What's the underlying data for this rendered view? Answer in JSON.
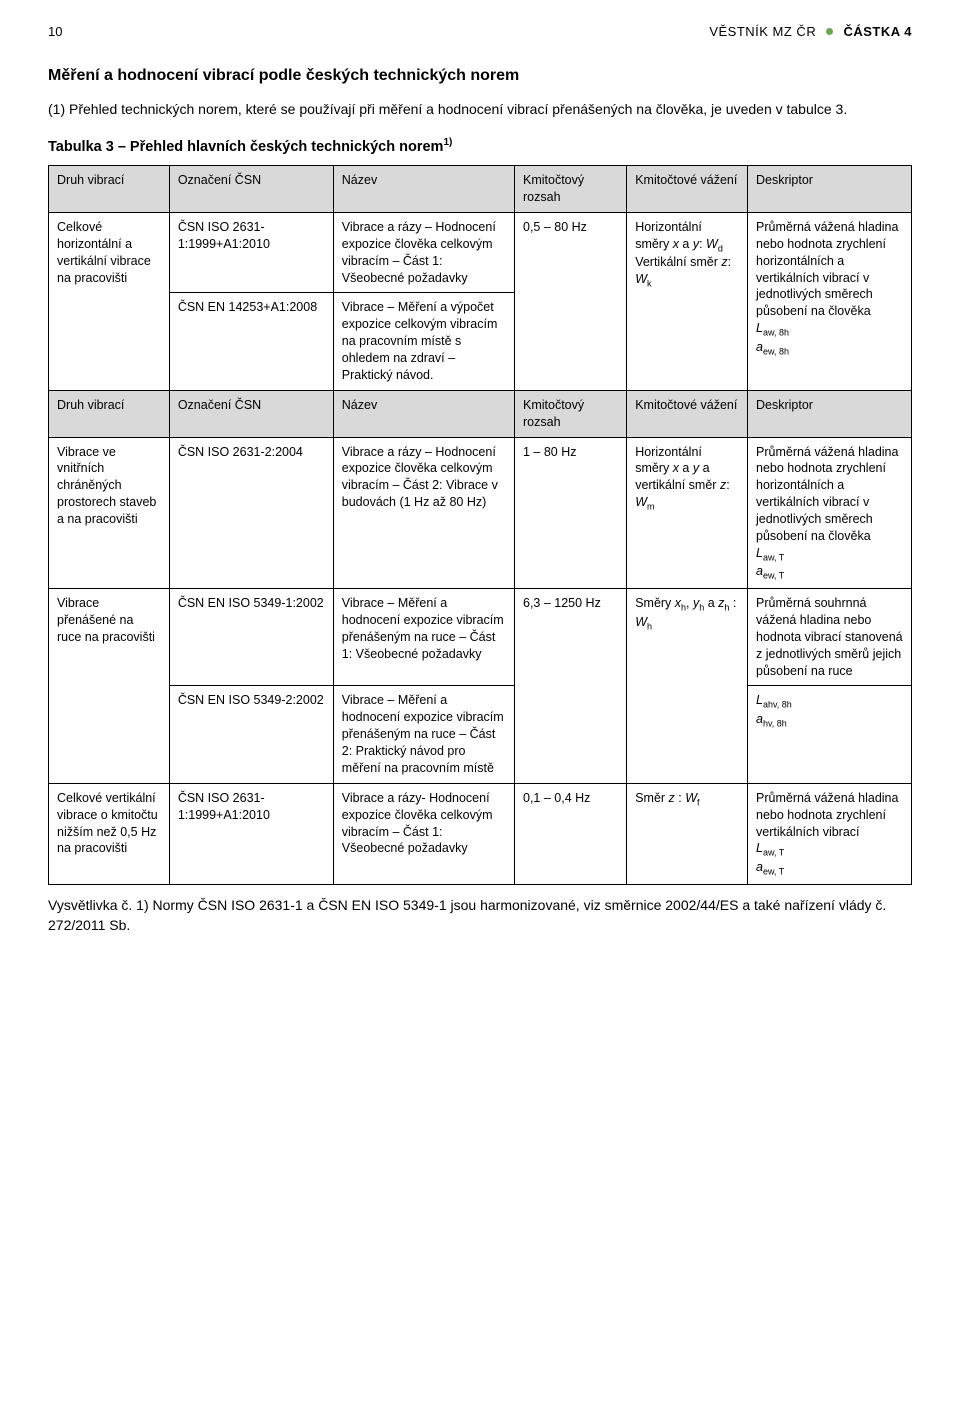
{
  "header": {
    "page_number": "10",
    "journal": "VĚSTNÍK MZ ČR",
    "issue": "ČÁSTKA 4",
    "dot_color": "#6aa84f"
  },
  "section_title": "Měření a hodnocení vibrací podle českých technických norem",
  "intro_paragraph": "(1) Přehled technických norem, které se používají při měření a hodnocení vibrací přenášených na člověka, je uveden v tabulce 3.",
  "table_title": "Tabulka 3 – Přehled hlavních českých technických norem",
  "table_title_sup": "1)",
  "headers": {
    "druh": "Druh vibrací",
    "oznaceni": "Označení ČSN",
    "nazev": "Název",
    "rozsah": "Kmitočtový rozsah",
    "vazeni": "Kmitočtové vážení",
    "deskriptor": "Deskriptor"
  },
  "rows": {
    "r1": {
      "druh": "Celkové horizontální a vertikální vibrace na pracovišti",
      "oznaceni": "ČSN ISO 2631-1:1999+A1:2010",
      "nazev": "Vibrace a rázy – Hodnocení expozice člověka celkovým vibracím – Část 1: Všeobecné požadavky",
      "rozsah": "0,5 – 80 Hz",
      "vazeni_html": "Horizontální směry <span class='i'>x</span> a <span class='i'>y</span>: <span class='i'>W</span><span class='sub'>d</span><br>Vertikální směr <span class='i'>z</span>: <span class='i'>W</span><span class='sub'>k</span>",
      "desk_html": "Průměrná vážená hladina nebo hodnota zrychlení horizontálních a vertikálních vibrací v jednotlivých směrech působení na člověka<br><span class='i'>L</span><span class='sub'>aw, 8h</span><br><span class='i'>a</span><span class='sub'>ew, 8h</span>"
    },
    "r2": {
      "oznaceni": "ČSN EN 14253+A1:2008",
      "nazev": "Vibrace – Měření a výpočet expozice celkovým vibracím na pracovním místě s ohledem na zdraví – Praktický návod."
    },
    "r3": {
      "druh": "Vibrace ve vnitřních chráněných prostorech staveb a na pracovišti",
      "oznaceni": "ČSN ISO 2631-2:2004",
      "nazev": "Vibrace a rázy – Hodnocení expozice člověka celkovým vibracím – Část 2: Vibrace v budovách (1 Hz až 80 Hz)",
      "rozsah": "1 – 80 Hz",
      "vazeni_html": "Horizontální směry <span class='i'>x</span> a <span class='i'>y</span> a vertikální směr <span class='i'>z</span>: <span class='i'>W</span><span class='sub'>m</span>",
      "desk_html": "Průměrná vážená hladina nebo hodnota zrychlení horizontálních a vertikálních vibrací v jednotlivých směrech působení na člověka<br><span class='i'>L</span><span class='sub'>aw, T</span><br><span class='i'>a</span><span class='sub'>ew, T</span>"
    },
    "r4": {
      "druh": "Vibrace přenášené na ruce na pracovišti",
      "oznaceni": "ČSN EN ISO 5349-1:2002",
      "nazev": "Vibrace – Měření a hodnocení expozice vibracím přenášeným na ruce – Část 1: Všeobecné požadavky",
      "rozsah": "6,3 – 1250 Hz",
      "vazeni_html": "Směry <span class='i'>x</span><span class='sub'>h</span>, <span class='i'>y</span><span class='sub'>h</span> a <span class='i'>z</span><span class='sub'>h</span> : <span class='i'>W</span><span class='sub'>h</span>",
      "desk_html": "Průměrná souhrnná vážená hladina nebo hodnota vibrací stanovená z jednotlivých směrů jejich působení na ruce"
    },
    "r5": {
      "oznaceni": "ČSN EN ISO 5349-2:2002",
      "nazev": "Vibrace – Měření a hodnocení expozice vibracím přenášeným na ruce – Část 2: Praktický návod pro měření na pracovním místě",
      "desk_html": "<span class='i'>L</span><span class='sub'>ahv, 8h</span><br><span class='i'>a</span><span class='sub'>hv, 8h</span>"
    },
    "r6": {
      "druh": "Celkové vertikální vibrace o kmitočtu nižším než 0,5 Hz na pracovišti",
      "oznaceni": "ČSN ISO 2631-1:1999+A1:2010",
      "nazev": "Vibrace a rázy- Hodnocení expozice člověka celkovým vibracím – Část 1: Všeobecné požadavky",
      "rozsah": "0,1 – 0,4 Hz",
      "vazeni_html": "Směr <span class='i'>z</span> : <span class='i'>W</span><span class='sub'>f</span>",
      "desk_html": "Průměrná vážená hladina nebo hodnota zrychlení vertikálních vibrací<br><span class='i'>L</span><span class='sub'>aw, T</span><br><span class='i'>a</span><span class='sub'>ew, T</span>"
    }
  },
  "footnote": "Vysvětlivka č. 1) Normy ČSN ISO 2631-1 a ČSN EN ISO 5349-1 jsou harmonizované, viz směrnice 2002/44/ES a také nařízení vlády č. 272/2011 Sb.",
  "style": {
    "header_bg": "#d9d9d9",
    "border_color": "#000000",
    "font_size_body": 14,
    "font_size_table": 12.5
  }
}
